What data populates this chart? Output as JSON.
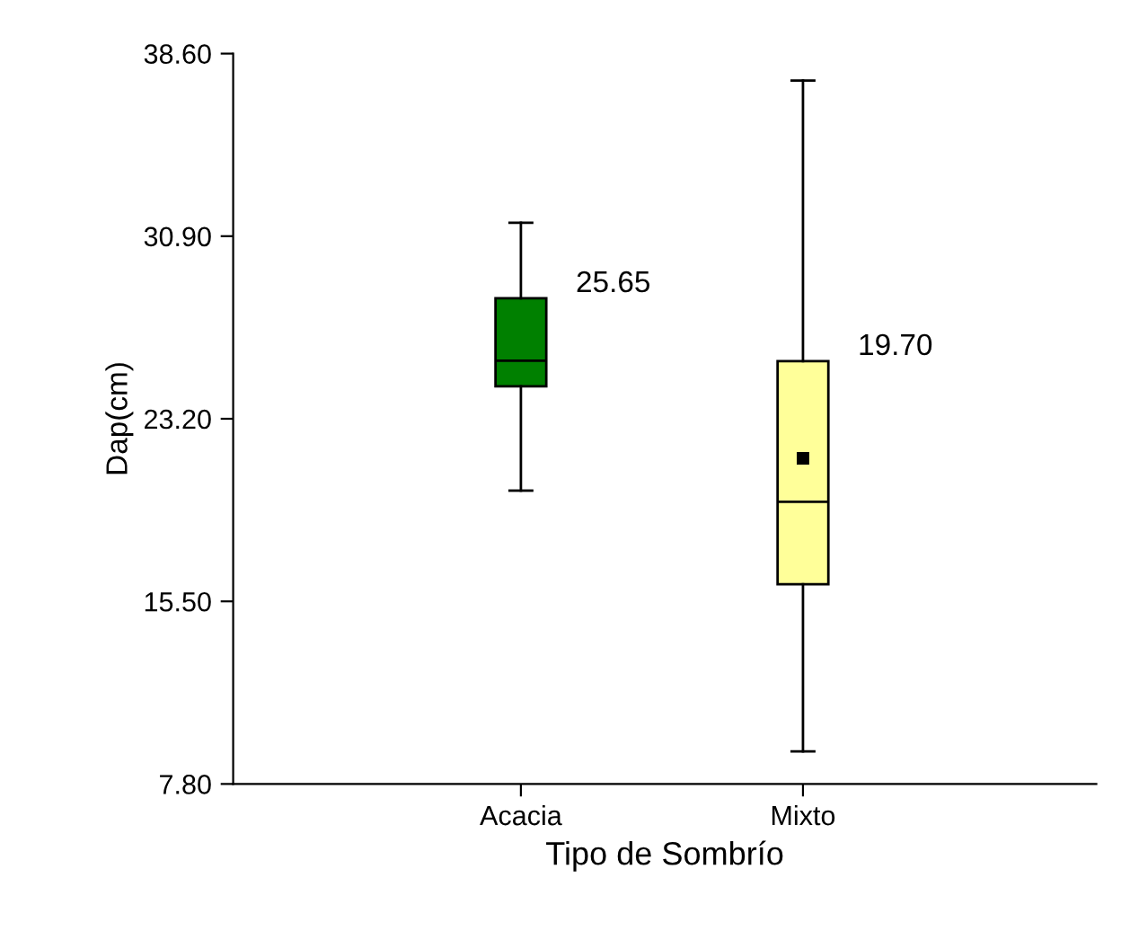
{
  "chart_data": {
    "type": "box",
    "xlabel": "Tipo de Sombrío",
    "ylabel": "Dap(cm)",
    "categories": [
      "Acacia",
      "Mixto"
    ],
    "boxes": [
      {
        "low": 20.17,
        "q1": 24.57,
        "median": 25.65,
        "q3": 28.28,
        "high": 31.47
      },
      {
        "low": 9.17,
        "q1": 16.22,
        "median": 19.7,
        "q3": 25.63,
        "high": 37.46,
        "mean": 21.53
      }
    ],
    "colors": [
      "#008000",
      "#ffff99"
    ],
    "ylim": [
      7.8,
      38.6
    ],
    "yticks": [
      {
        "value": 7.8,
        "label": "7.80"
      },
      {
        "value": 15.5,
        "label": "15.50"
      },
      {
        "value": 23.2,
        "label": "23.20"
      },
      {
        "value": 30.9,
        "label": "30.90"
      },
      {
        "value": 38.6,
        "label": "38.60"
      }
    ],
    "annotations": [
      "25.65",
      "19.70"
    ],
    "grid": false,
    "legend": false
  }
}
